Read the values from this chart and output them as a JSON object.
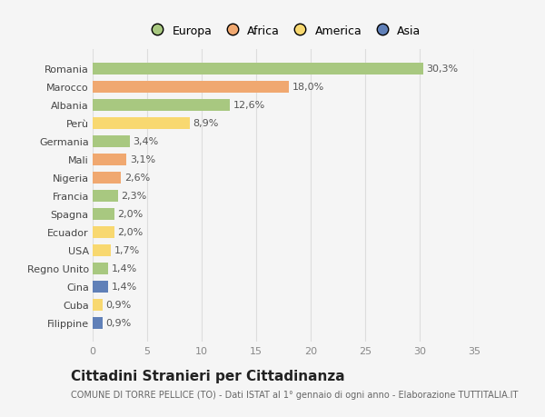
{
  "countries": [
    "Romania",
    "Marocco",
    "Albania",
    "Perù",
    "Germania",
    "Mali",
    "Nigeria",
    "Francia",
    "Spagna",
    "Ecuador",
    "USA",
    "Regno Unito",
    "Cina",
    "Cuba",
    "Filippine"
  ],
  "values": [
    30.3,
    18.0,
    12.6,
    8.9,
    3.4,
    3.1,
    2.6,
    2.3,
    2.0,
    2.0,
    1.7,
    1.4,
    1.4,
    0.9,
    0.9
  ],
  "labels": [
    "30,3%",
    "18,0%",
    "12,6%",
    "8,9%",
    "3,4%",
    "3,1%",
    "2,6%",
    "2,3%",
    "2,0%",
    "2,0%",
    "1,7%",
    "1,4%",
    "1,4%",
    "0,9%",
    "0,9%"
  ],
  "colors": [
    "#a8c880",
    "#f0a870",
    "#a8c880",
    "#f8d870",
    "#a8c880",
    "#f0a870",
    "#f0a870",
    "#a8c880",
    "#a8c880",
    "#f8d870",
    "#f8d870",
    "#a8c880",
    "#6080b8",
    "#f8d870",
    "#6080b8"
  ],
  "legend_labels": [
    "Europa",
    "Africa",
    "America",
    "Asia"
  ],
  "legend_colors": [
    "#a8c880",
    "#f0a870",
    "#f8d870",
    "#6080b8"
  ],
  "xlim": [
    0,
    35
  ],
  "xticks": [
    0,
    5,
    10,
    15,
    20,
    25,
    30,
    35
  ],
  "title": "Cittadini Stranieri per Cittadinanza",
  "subtitle": "COMUNE DI TORRE PELLICE (TO) - Dati ISTAT al 1° gennaio di ogni anno - Elaborazione TUTTITALIA.IT",
  "bg_color": "#f5f5f5",
  "grid_color": "#dddddd",
  "bar_height": 0.65,
  "title_fontsize": 11,
  "subtitle_fontsize": 7,
  "tick_fontsize": 8,
  "label_fontsize": 8,
  "legend_fontsize": 9
}
